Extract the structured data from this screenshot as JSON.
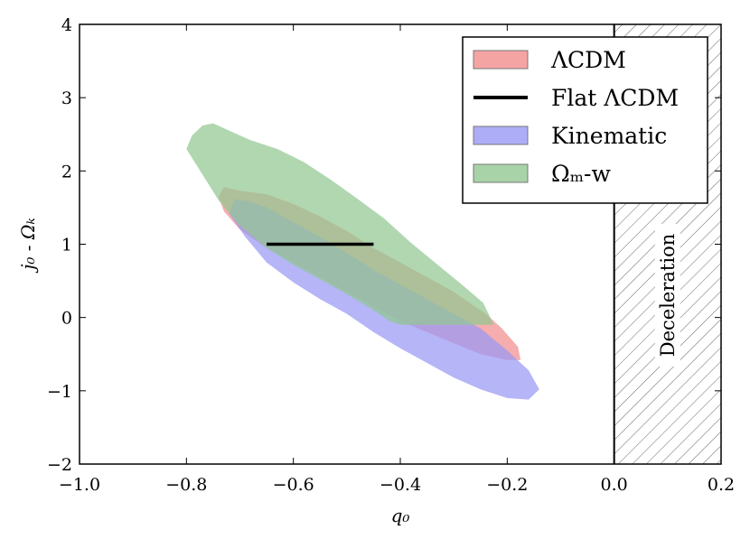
{
  "chart_data": {
    "type": "area",
    "title": "",
    "xlabel": "q₀",
    "ylabel": "j₀ - Ωₖ",
    "xlim": [
      -1.0,
      0.2
    ],
    "ylim": [
      -2,
      4
    ],
    "xticks": [
      -1.0,
      -0.8,
      -0.6,
      -0.4,
      -0.2,
      0.0,
      0.2
    ],
    "xtick_labels": [
      "−1.0",
      "−0.8",
      "−0.6",
      "−0.4",
      "−0.2",
      "0.0",
      "0.2"
    ],
    "yticks": [
      -2,
      -1,
      0,
      1,
      2,
      3,
      4
    ],
    "ytick_labels": [
      "−2",
      "−1",
      "0",
      "1",
      "2",
      "3",
      "4"
    ],
    "grid": false,
    "legend_position": "top-right",
    "series": [
      {
        "name": "ΛCDM",
        "kind": "region",
        "color": "#f28d8d",
        "opacity": 0.72,
        "points": [
          [
            -0.73,
            1.78
          ],
          [
            -0.7,
            1.73
          ],
          [
            -0.65,
            1.68
          ],
          [
            -0.6,
            1.55
          ],
          [
            -0.55,
            1.38
          ],
          [
            -0.5,
            1.18
          ],
          [
            -0.45,
            0.95
          ],
          [
            -0.4,
            0.75
          ],
          [
            -0.35,
            0.55
          ],
          [
            -0.3,
            0.35
          ],
          [
            -0.27,
            0.2
          ],
          [
            -0.24,
            0.05
          ],
          [
            -0.21,
            -0.15
          ],
          [
            -0.18,
            -0.4
          ],
          [
            -0.175,
            -0.58
          ],
          [
            -0.2,
            -0.58
          ],
          [
            -0.25,
            -0.5
          ],
          [
            -0.3,
            -0.35
          ],
          [
            -0.35,
            -0.2
          ],
          [
            -0.4,
            -0.05
          ],
          [
            -0.45,
            0.15
          ],
          [
            -0.5,
            0.35
          ],
          [
            -0.55,
            0.55
          ],
          [
            -0.6,
            0.75
          ],
          [
            -0.65,
            0.95
          ],
          [
            -0.7,
            1.2
          ],
          [
            -0.73,
            1.45
          ],
          [
            -0.74,
            1.65
          ]
        ]
      },
      {
        "name": "Flat ΛCDM",
        "kind": "line",
        "color": "#000000",
        "x": [
          -0.65,
          -0.45
        ],
        "y": [
          1.0,
          1.0
        ]
      },
      {
        "name": "Kinematic",
        "kind": "region",
        "color": "#9898f5",
        "opacity": 0.72,
        "points": [
          [
            -0.71,
            1.62
          ],
          [
            -0.68,
            1.58
          ],
          [
            -0.65,
            1.5
          ],
          [
            -0.6,
            1.3
          ],
          [
            -0.55,
            1.1
          ],
          [
            -0.5,
            0.88
          ],
          [
            -0.45,
            0.65
          ],
          [
            -0.4,
            0.45
          ],
          [
            -0.35,
            0.25
          ],
          [
            -0.3,
            0.05
          ],
          [
            -0.25,
            -0.15
          ],
          [
            -0.2,
            -0.45
          ],
          [
            -0.16,
            -0.72
          ],
          [
            -0.14,
            -0.98
          ],
          [
            -0.16,
            -1.12
          ],
          [
            -0.2,
            -1.1
          ],
          [
            -0.25,
            -0.98
          ],
          [
            -0.3,
            -0.82
          ],
          [
            -0.35,
            -0.62
          ],
          [
            -0.4,
            -0.42
          ],
          [
            -0.45,
            -0.2
          ],
          [
            -0.5,
            0.05
          ],
          [
            -0.55,
            0.25
          ],
          [
            -0.6,
            0.48
          ],
          [
            -0.65,
            0.75
          ],
          [
            -0.69,
            1.1
          ],
          [
            -0.72,
            1.42
          ]
        ]
      },
      {
        "name": "Ωₘ-w",
        "kind": "region",
        "color": "#92c892",
        "opacity": 0.72,
        "points": [
          [
            -0.79,
            2.48
          ],
          [
            -0.77,
            2.62
          ],
          [
            -0.75,
            2.65
          ],
          [
            -0.72,
            2.55
          ],
          [
            -0.68,
            2.42
          ],
          [
            -0.63,
            2.3
          ],
          [
            -0.58,
            2.12
          ],
          [
            -0.53,
            1.88
          ],
          [
            -0.48,
            1.62
          ],
          [
            -0.43,
            1.35
          ],
          [
            -0.38,
            1.02
          ],
          [
            -0.33,
            0.72
          ],
          [
            -0.28,
            0.42
          ],
          [
            -0.245,
            0.2
          ],
          [
            -0.225,
            -0.1
          ],
          [
            -0.4,
            -0.1
          ],
          [
            -0.42,
            -0.05
          ],
          [
            -0.45,
            0.1
          ],
          [
            -0.5,
            0.32
          ],
          [
            -0.55,
            0.52
          ],
          [
            -0.6,
            0.72
          ],
          [
            -0.65,
            0.95
          ],
          [
            -0.7,
            1.25
          ],
          [
            -0.74,
            1.6
          ],
          [
            -0.77,
            1.95
          ],
          [
            -0.8,
            2.3
          ]
        ]
      }
    ],
    "shaded_band": {
      "label": "Deceleration",
      "x_from": 0.0,
      "x_to": 0.2,
      "pattern": "diagonal-hatch"
    },
    "legend": [
      {
        "label": "ΛCDM",
        "kind": "patch",
        "color": "#f28d8d"
      },
      {
        "label": "Flat ΛCDM",
        "kind": "line",
        "color": "#000000"
      },
      {
        "label": "Kinematic",
        "kind": "patch",
        "color": "#9898f5"
      },
      {
        "label": "Ωₘ-w",
        "kind": "patch",
        "color": "#92c892"
      }
    ]
  }
}
